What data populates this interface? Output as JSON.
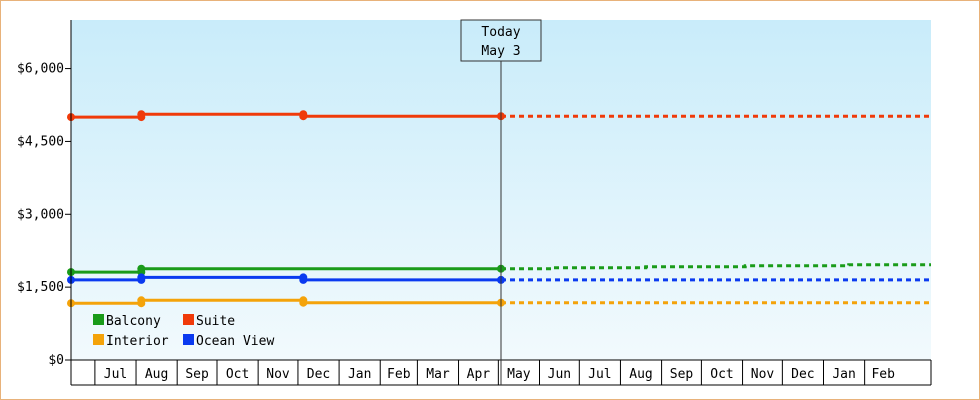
{
  "chart_data": {
    "type": "line",
    "title": "",
    "xlabel": "",
    "ylabel": "",
    "ylim": [
      0,
      7000
    ],
    "y_ticks": [
      "$0",
      "$1,500",
      "$3,000",
      "$4,500",
      "$6,000"
    ],
    "x_range": [
      "2024-06-13",
      "2026-03-23"
    ],
    "month_labels": [
      "Jul",
      "Aug",
      "Sep",
      "Oct",
      "Nov",
      "Dec",
      "Jan",
      "Feb",
      "Mar",
      "Apr",
      "May",
      "Jun",
      "Jul",
      "Aug",
      "Sep",
      "Oct",
      "Nov",
      "Dec",
      "Jan",
      "Feb"
    ],
    "today": {
      "label_line1": "Today",
      "label_line2": "May 3",
      "date": "2025-05-03"
    },
    "legend": {
      "position": "bottom-left",
      "columns": 2
    },
    "grid": false,
    "background_gradient": [
      "#c9ecfa",
      "#f2fafd"
    ],
    "series": [
      {
        "name": "Balcony",
        "color": "#1a9b1a",
        "points": [
          [
            "2024-06-13",
            1810
          ],
          [
            "2024-08-05",
            1810
          ],
          [
            "2024-08-05",
            1880
          ],
          [
            "2024-12-05",
            1880
          ],
          [
            "2025-05-03",
            1880
          ]
        ],
        "markers": [
          "2024-06-13",
          "2024-08-05",
          "2025-05-03"
        ],
        "forecast": [
          [
            "2025-05-03",
            1880
          ],
          [
            "2025-06-10",
            1880
          ],
          [
            "2025-06-10",
            1900
          ],
          [
            "2025-08-20",
            1900
          ],
          [
            "2025-08-20",
            1920
          ],
          [
            "2025-11-03",
            1920
          ],
          [
            "2025-11-03",
            1940
          ],
          [
            "2026-01-20",
            1940
          ],
          [
            "2026-01-20",
            1960
          ],
          [
            "2026-03-23",
            1960
          ]
        ]
      },
      {
        "name": "Suite",
        "color": "#f03a0a",
        "points": [
          [
            "2024-06-13",
            5000
          ],
          [
            "2024-08-05",
            5000
          ],
          [
            "2024-08-05",
            5060
          ],
          [
            "2024-12-05",
            5060
          ],
          [
            "2024-12-05",
            5020
          ],
          [
            "2025-05-03",
            5020
          ]
        ],
        "markers": [
          "2024-06-13",
          "2024-08-05",
          "2024-12-05",
          "2025-05-03"
        ],
        "forecast": [
          [
            "2025-05-03",
            5020
          ],
          [
            "2026-03-23",
            5020
          ]
        ]
      },
      {
        "name": "Interior",
        "color": "#f4a30a",
        "points": [
          [
            "2024-06-13",
            1170
          ],
          [
            "2024-08-05",
            1170
          ],
          [
            "2024-08-05",
            1230
          ],
          [
            "2024-12-05",
            1230
          ],
          [
            "2024-12-05",
            1180
          ],
          [
            "2025-05-03",
            1180
          ]
        ],
        "markers": [
          "2024-06-13",
          "2024-08-05",
          "2024-12-05",
          "2025-05-03"
        ],
        "forecast": [
          [
            "2025-05-03",
            1180
          ],
          [
            "2026-03-23",
            1180
          ]
        ]
      },
      {
        "name": "Ocean View",
        "color": "#0a3af0",
        "points": [
          [
            "2024-06-13",
            1650
          ],
          [
            "2024-08-05",
            1650
          ],
          [
            "2024-08-05",
            1700
          ],
          [
            "2024-12-05",
            1700
          ],
          [
            "2024-12-05",
            1650
          ],
          [
            "2025-05-03",
            1650
          ]
        ],
        "markers": [
          "2024-06-13",
          "2024-08-05",
          "2024-12-05",
          "2025-05-03"
        ],
        "forecast": [
          [
            "2025-05-03",
            1650
          ],
          [
            "2026-03-23",
            1650
          ]
        ]
      }
    ]
  }
}
